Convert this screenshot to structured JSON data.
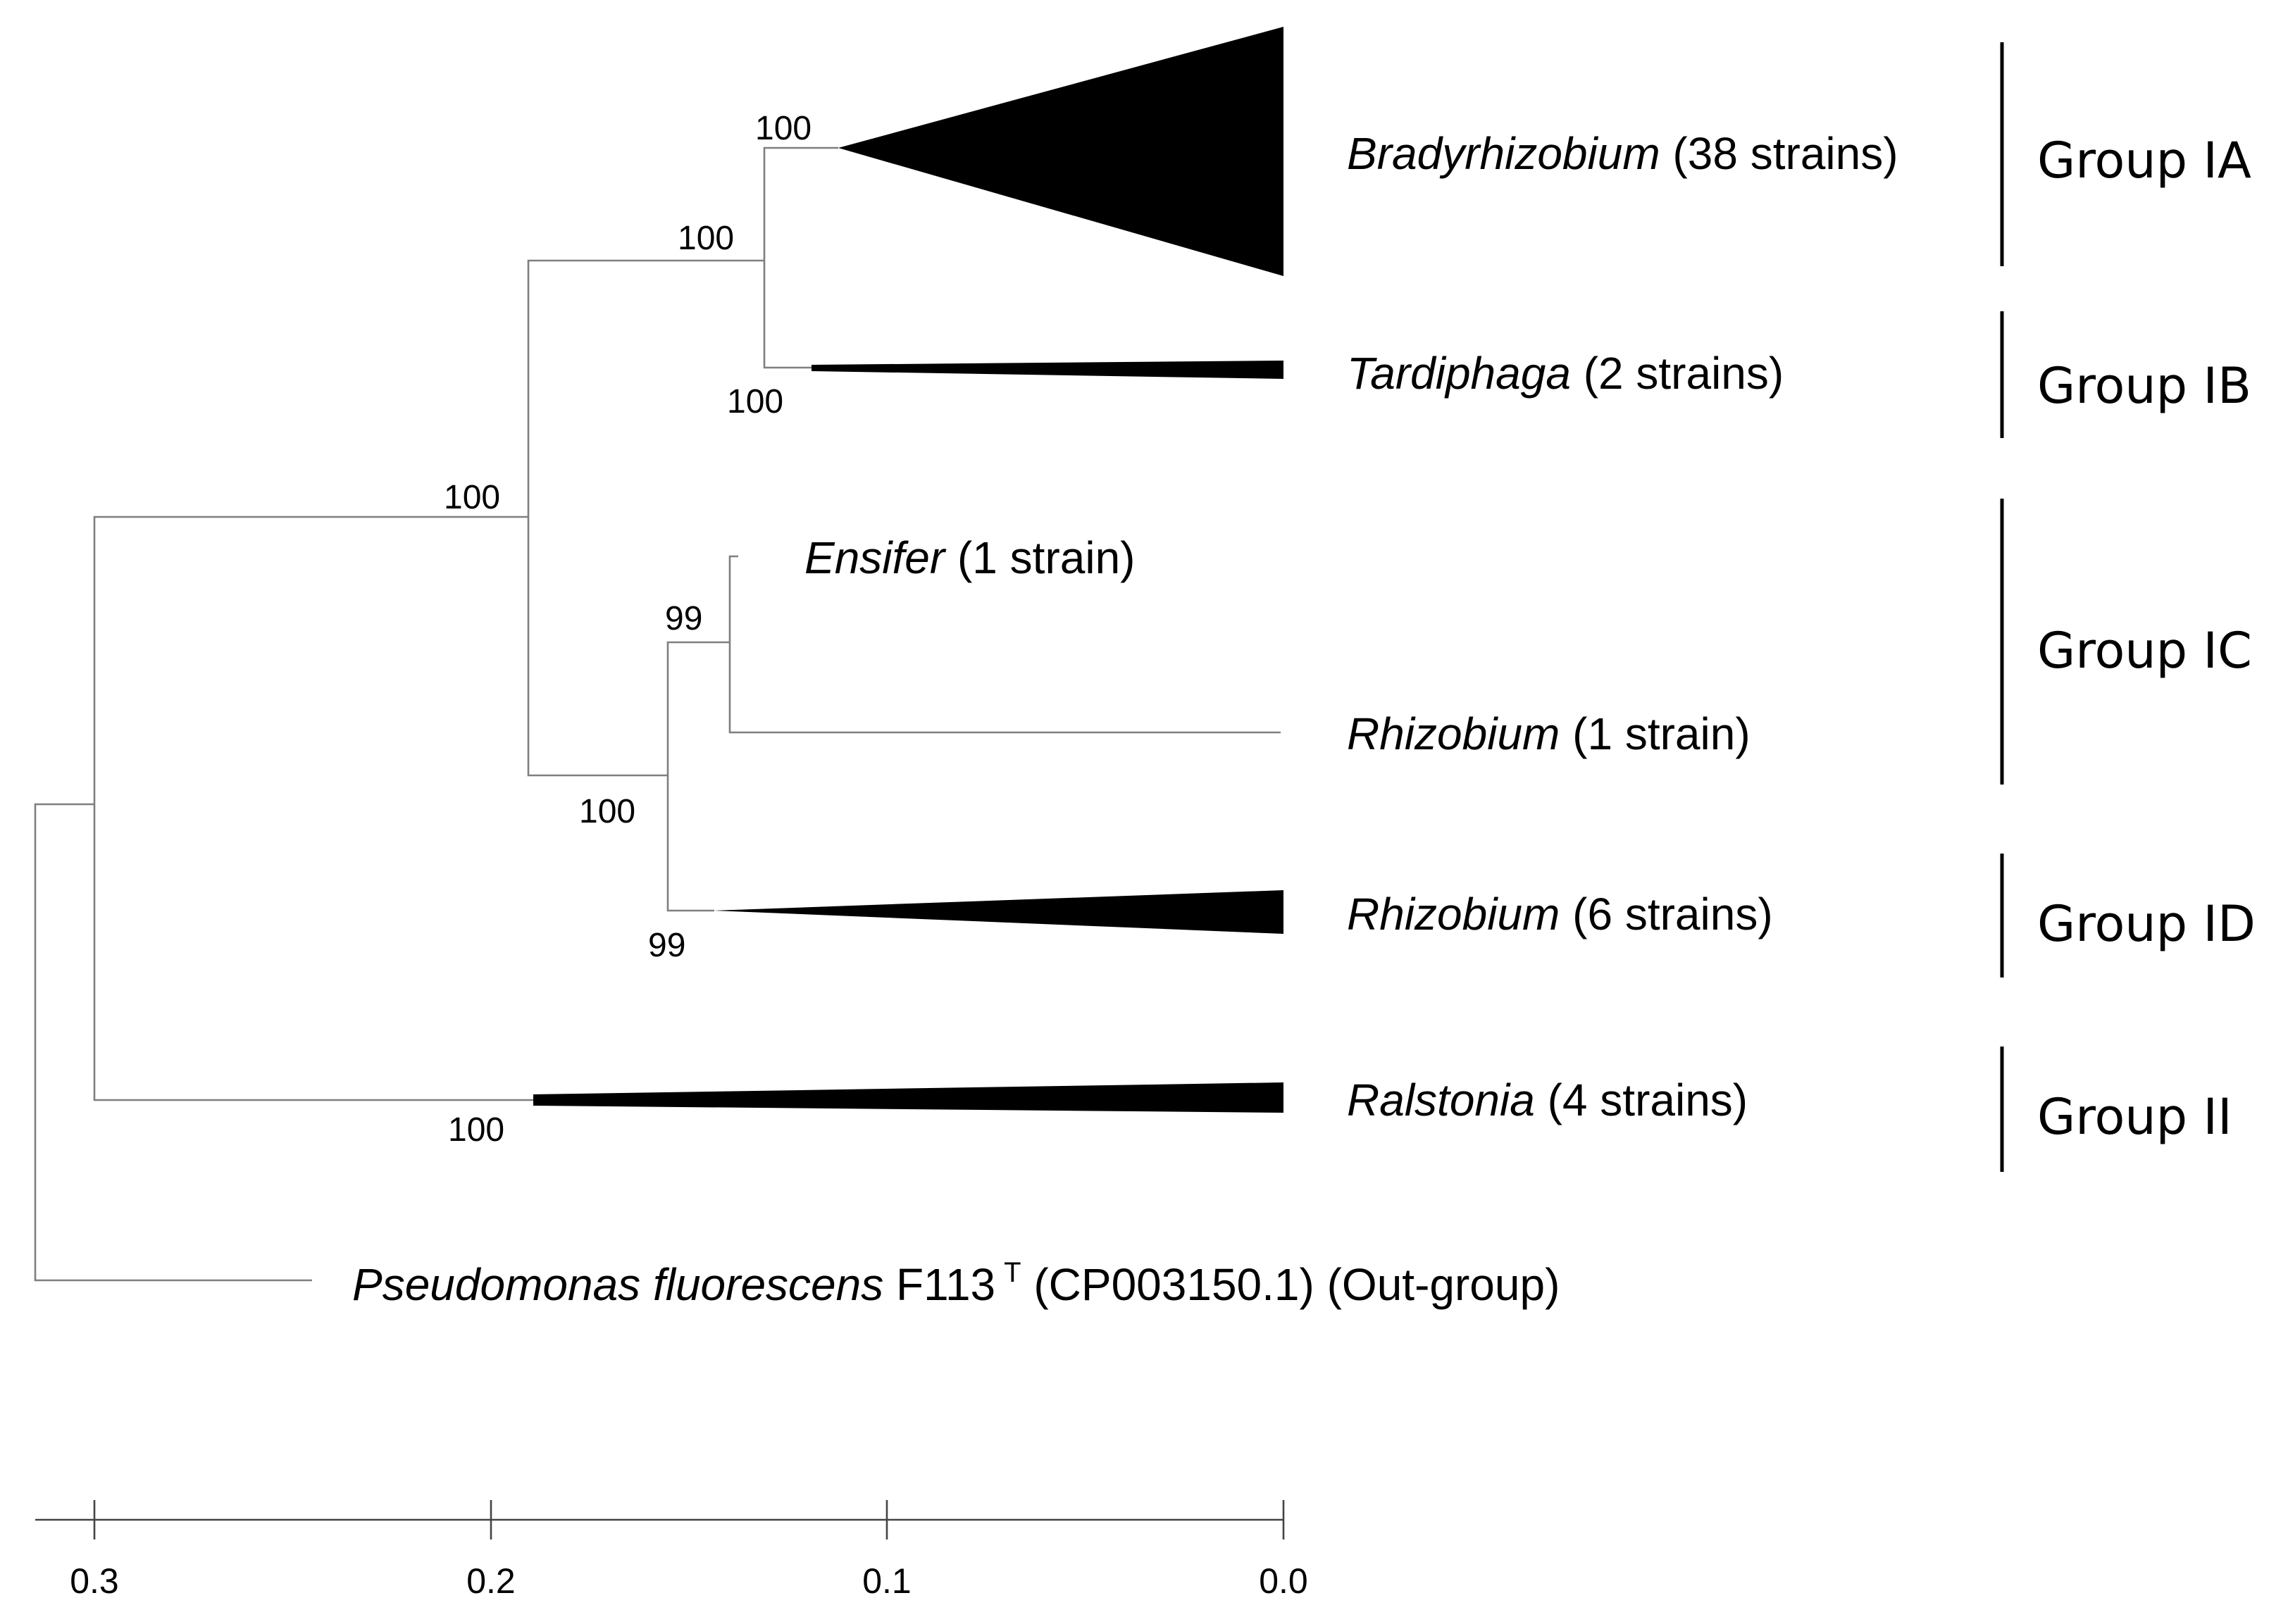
{
  "tree": {
    "tips": {
      "bradyrhizobium": {
        "genus": "Bradyrhizobium",
        "rest": " (38 strains)"
      },
      "tardiphaga": {
        "genus": "Tardiphaga",
        "rest": " (2 strains)"
      },
      "ensifer": {
        "genus": "Ensifer",
        "rest": " (1 strain)"
      },
      "rhizobium1": {
        "genus": "Rhizobium",
        "rest": " (1 strain)"
      },
      "rhizobium6": {
        "genus": "Rhizobium",
        "rest": " (6 strains)"
      },
      "ralstonia": {
        "genus": "Ralstonia",
        "rest": " (4 strains)"
      },
      "outgroup": {
        "genus": "Pseudomonas fluorescens",
        "strain": " F113",
        "sup": "T",
        "rest": " (CP003150.1) (Out-group)"
      }
    },
    "bootstrap": {
      "brady_node": "100",
      "brady_tard_node": "100",
      "tard_node": "100",
      "root_ingroup_node": "100",
      "ens_rhiz_node": "99",
      "group_c_d_node": "100",
      "rhizobium6_node": "99",
      "ralstonia_node": "100"
    },
    "groups": {
      "ia": "Group IA",
      "ib": "Group IB",
      "ic": "Group IC",
      "id": "Group ID",
      "ii": "Group II"
    }
  },
  "scale_axis": {
    "ticks": [
      "0.3",
      "0.2",
      "0.1",
      "0.0"
    ]
  }
}
